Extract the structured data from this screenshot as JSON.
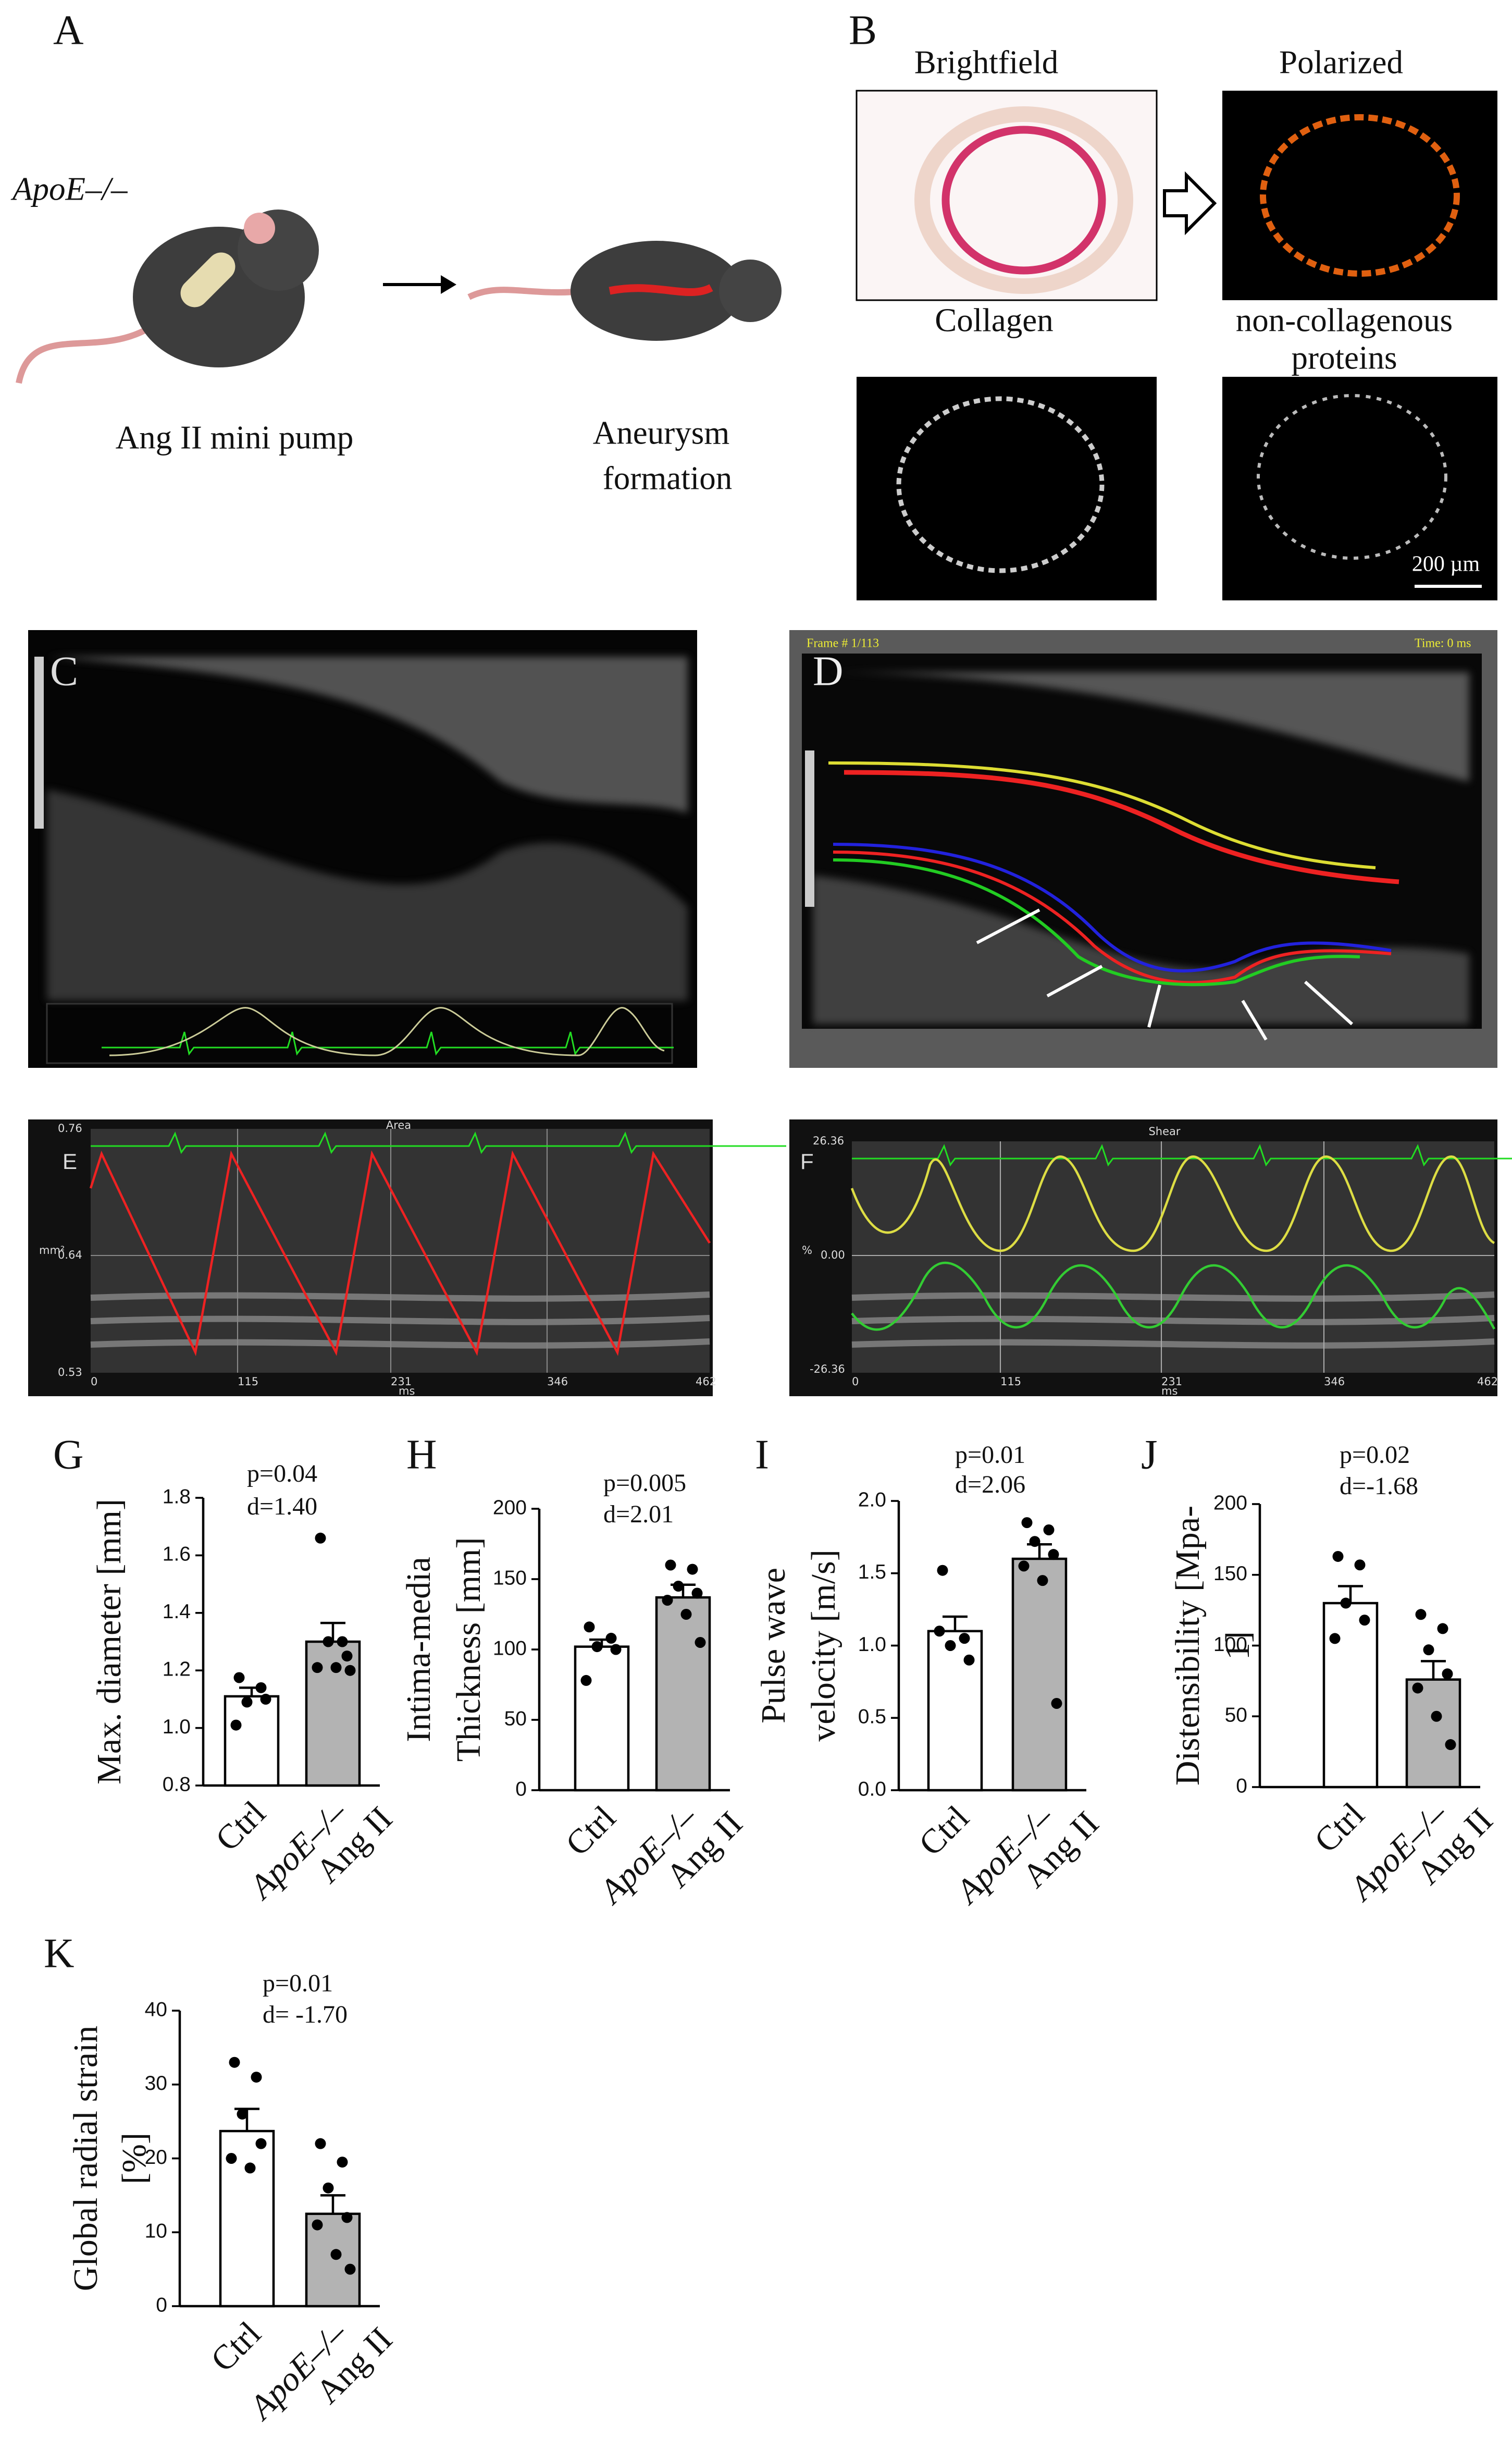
{
  "figure": {
    "A": {
      "label": "A",
      "genotype": "ApoE–/–",
      "left_caption": "Ang II mini pump",
      "right_caption": [
        "Aneurysm",
        "formation"
      ]
    },
    "B": {
      "label": "B",
      "titles": [
        "Brightfield",
        "Polarized",
        "Collagen",
        "non-collagenous",
        "proteins"
      ],
      "scale_bar": "200 µm"
    },
    "C": {
      "label": "C"
    },
    "D": {
      "label": "D",
      "frame": "Frame # 1/113",
      "time": "Time: 0 ms"
    },
    "E": {
      "label": "E",
      "title": "Area",
      "y_labels": [
        "0.76",
        "0.64",
        "0.53"
      ],
      "y_unit": "mm²",
      "x_labels": [
        "0",
        "115",
        "231",
        "346",
        "462"
      ],
      "x_unit": "ms"
    },
    "F": {
      "label": "F",
      "title": "Shear",
      "y_labels": [
        "26.36",
        "0.00",
        "-26.36"
      ],
      "y_unit": "%",
      "x_labels": [
        "0",
        "115",
        "231",
        "346",
        "462"
      ],
      "x_unit": "ms"
    }
  },
  "chart_data": [
    {
      "type": "bar",
      "label": "G",
      "ylabel": [
        "Max. diameter [mm]"
      ],
      "annotation": [
        "p=0.04",
        "d=1.40"
      ],
      "categories": [
        "Ctrl",
        "ApoE–/–\nAng II"
      ],
      "values": [
        1.11,
        1.3
      ],
      "errors": [
        0.03,
        0.065
      ],
      "colors": [
        "#ffffff",
        "#b3b3b3"
      ],
      "points": [
        [
          1.175,
          1.14,
          1.09,
          1.1,
          1.01
        ],
        [
          1.66,
          1.3,
          1.3,
          1.25,
          1.21,
          1.21,
          1.2
        ]
      ],
      "ylim": [
        0.8,
        1.8
      ],
      "yticks": [
        0.8,
        {
          "value": 1,
          "label": "1.0"
        },
        1.2,
        1.4,
        1.6,
        1.8
      ]
    },
    {
      "type": "bar",
      "label": "H",
      "ylabel": [
        "Intima-media",
        "Thickness [mm]"
      ],
      "annotation": [
        "p=0.005",
        "d=2.01"
      ],
      "categories": [
        "Ctrl",
        "ApoE–/–\nAng II"
      ],
      "values": [
        102,
        137
      ],
      "errors": [
        5,
        9
      ],
      "colors": [
        "#ffffff",
        "#b3b3b3"
      ],
      "points": [
        [
          116,
          108,
          102,
          100,
          78
        ],
        [
          160,
          157,
          145,
          140,
          135,
          125,
          105
        ]
      ],
      "ylim": [
        0,
        200
      ],
      "yticks": [
        0,
        50,
        100,
        150,
        200
      ]
    },
    {
      "type": "bar",
      "label": "I",
      "ylabel": [
        "Pulse wave",
        "velocity [m/s]"
      ],
      "annotation": [
        "p=0.01",
        "d=2.06"
      ],
      "categories": [
        "Ctrl",
        "ApoE–/–\nAng II"
      ],
      "values": [
        1.1,
        1.6
      ],
      "errors": [
        0.1,
        0.1
      ],
      "colors": [
        "#ffffff",
        "#b3b3b3"
      ],
      "points": [
        [
          1.52,
          1.05,
          1.0,
          0.9,
          1.1
        ],
        [
          1.85,
          1.8,
          1.72,
          1.63,
          1.55,
          1.45,
          0.6
        ]
      ],
      "ylim": [
        0,
        2
      ],
      "yticks": [
        {
          "value": 0,
          "label": "0.0"
        },
        0.5,
        {
          "value": 1,
          "label": "1.0"
        },
        1.5,
        {
          "value": 2,
          "label": "2.0"
        }
      ]
    },
    {
      "type": "bar",
      "label": "J",
      "ylabel": [
        "Distensibility [Mpa-",
        "1]"
      ],
      "annotation": [
        "p=0.02",
        "d=-1.68"
      ],
      "categories": [
        "Ctrl",
        "ApoE–/–\nAng II"
      ],
      "values": [
        130,
        76
      ],
      "errors": [
        12,
        13
      ],
      "colors": [
        "#ffffff",
        "#b3b3b3"
      ],
      "points": [
        [
          163,
          157,
          130,
          118,
          105
        ],
        [
          122,
          112,
          97,
          80,
          70,
          50,
          30
        ]
      ],
      "ylim": [
        0,
        200
      ],
      "yticks": [
        0,
        50,
        100,
        150,
        200
      ]
    },
    {
      "type": "bar",
      "label": "K",
      "ylabel": [
        "Global radial strain",
        "[%]"
      ],
      "annotation": [
        "p=0.01",
        "d= -1.70"
      ],
      "categories": [
        "Ctrl",
        "ApoE–/–\nAng II"
      ],
      "values": [
        23.7,
        12.5
      ],
      "errors": [
        3,
        2.5
      ],
      "colors": [
        "#ffffff",
        "#b3b3b3"
      ],
      "points": [
        [
          33,
          31,
          26,
          22,
          20,
          18.7
        ],
        [
          22,
          19.5,
          16,
          12,
          11,
          7,
          5
        ]
      ],
      "ylim": [
        0,
        40
      ],
      "yticks": [
        0,
        10,
        20,
        30,
        40
      ]
    }
  ]
}
